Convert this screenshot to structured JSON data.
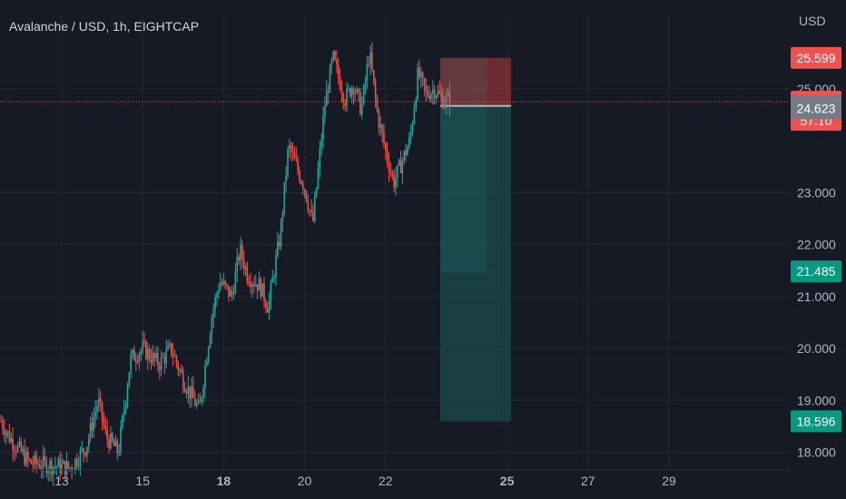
{
  "header": {
    "title": "Avalanche / USD, 1h, EIGHTCAP",
    "currency": "USD"
  },
  "colors": {
    "background": "#161a25",
    "up": "#26a69a",
    "down": "#ef5350",
    "grid": "#242833",
    "stop_zone": "#b23a3a",
    "target_zone": "#1e5c58",
    "price_line": "#ef5350",
    "badge_gray": "#787b86",
    "badge_target": "#089981"
  },
  "chart_data": {
    "type": "candlestick",
    "y_axis": {
      "min": 18,
      "max": 26.3,
      "ticks": [
        "18.000",
        "19.000",
        "20.000",
        "21.000",
        "22.000",
        "23.000",
        "25.000"
      ]
    },
    "x_axis": {
      "min_day": 11.5,
      "max_day": 30.5,
      "ticks": [
        {
          "label": "13",
          "day": 13,
          "bold": false
        },
        {
          "label": "15",
          "day": 15,
          "bold": false
        },
        {
          "label": "18",
          "day": 17,
          "bold": true
        },
        {
          "label": "20",
          "day": 19,
          "bold": false
        },
        {
          "label": "22",
          "day": 21,
          "bold": false
        },
        {
          "label": "25",
          "day": 24,
          "bold": true
        },
        {
          "label": "27",
          "day": 26,
          "bold": false
        },
        {
          "label": "29",
          "day": 28,
          "bold": false
        }
      ]
    },
    "price_path": [
      [
        11.5,
        18.6
      ],
      [
        11.7,
        18.3
      ],
      [
        12.2,
        17.8
      ],
      [
        13.2,
        17.7
      ],
      [
        13.6,
        18.1
      ],
      [
        13.9,
        19.0
      ],
      [
        14.1,
        18.3
      ],
      [
        14.4,
        18.0
      ],
      [
        14.7,
        19.8
      ],
      [
        15.0,
        20.0
      ],
      [
        15.4,
        19.7
      ],
      [
        15.7,
        20.0
      ],
      [
        16.0,
        19.4
      ],
      [
        16.2,
        19.1
      ],
      [
        16.4,
        18.8
      ],
      [
        16.7,
        20.6
      ],
      [
        16.9,
        21.3
      ],
      [
        17.2,
        21.0
      ],
      [
        17.4,
        21.9
      ],
      [
        17.6,
        21.4
      ],
      [
        17.9,
        21.2
      ],
      [
        18.1,
        20.8
      ],
      [
        18.4,
        22.2
      ],
      [
        18.6,
        23.9
      ],
      [
        18.8,
        23.5
      ],
      [
        19.0,
        23.1
      ],
      [
        19.2,
        22.4
      ],
      [
        19.5,
        24.7
      ],
      [
        19.7,
        25.6
      ],
      [
        20.0,
        24.8
      ],
      [
        20.2,
        25.1
      ],
      [
        20.4,
        24.6
      ],
      [
        20.6,
        25.7
      ],
      [
        20.8,
        24.5
      ],
      [
        21.0,
        23.8
      ],
      [
        21.2,
        23.2
      ],
      [
        21.4,
        23.6
      ],
      [
        21.6,
        24.0
      ],
      [
        21.8,
        25.3
      ],
      [
        22.0,
        24.9
      ],
      [
        22.2,
        25.0
      ],
      [
        22.4,
        24.8
      ],
      [
        22.6,
        24.8
      ]
    ],
    "position": {
      "type": "short",
      "start_day": 22.35,
      "target_end_day": 24.1,
      "zone_end_day": 23.5,
      "entry": 24.674,
      "stop": 25.599,
      "target": 18.596,
      "second_target": 21.485
    },
    "current_price": 24.755,
    "price_labels": [
      {
        "label": "25.599",
        "value": 25.599,
        "style": "stop"
      },
      {
        "label": "24.755",
        "value": 24.755,
        "style": "last",
        "sub": "57:10"
      },
      {
        "label": "24.674",
        "value": 24.674,
        "style": "gray"
      },
      {
        "label": "24.623",
        "value": 24.623,
        "style": "gray"
      },
      {
        "label": "21.485",
        "value": 21.485,
        "style": "target"
      },
      {
        "label": "18.596",
        "value": 18.596,
        "style": "target"
      }
    ]
  }
}
